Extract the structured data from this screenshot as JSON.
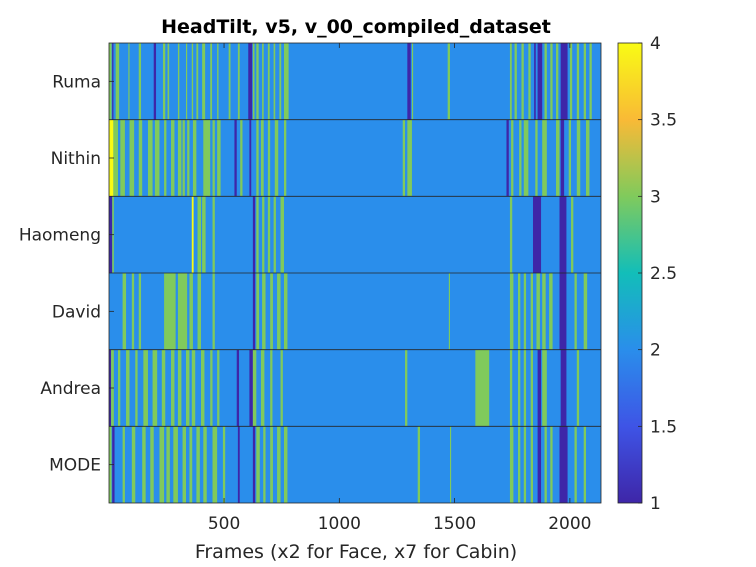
{
  "chart_data": {
    "type": "heatmap",
    "title": "HeadTilt, v5, v_00_compiled_dataset",
    "xlabel": "Frames (x2 for Face, x7 for Cabin)",
    "ylabel": "",
    "xlim": [
      1,
      2135
    ],
    "x_ticks": [
      500,
      1000,
      1500,
      2000
    ],
    "rows": [
      "Ruma",
      "Nithin",
      "Haomeng",
      "David",
      "Andrea",
      "MODE"
    ],
    "colorbar": {
      "colormap": "parula",
      "range": [
        1,
        4
      ],
      "ticks": [
        1,
        1.5,
        2,
        2.5,
        3,
        3.5,
        4
      ],
      "tick_labels": [
        "1",
        "1.5",
        "2",
        "2.5",
        "3",
        "3.5",
        "4"
      ]
    },
    "base_value": 2,
    "segments": [
      {
        "row": "Ruma",
        "spans": [
          [
            1,
            12,
            3
          ],
          [
            15,
            20,
            1
          ],
          [
            30,
            45,
            3
          ],
          [
            85,
            90,
            3
          ],
          [
            130,
            140,
            3
          ],
          [
            195,
            205,
            1
          ],
          [
            235,
            245,
            3
          ],
          [
            255,
            262,
            3
          ],
          [
            300,
            306,
            3
          ],
          [
            335,
            340,
            3
          ],
          [
            360,
            366,
            3
          ],
          [
            380,
            388,
            3
          ],
          [
            405,
            418,
            3
          ],
          [
            440,
            448,
            3
          ],
          [
            470,
            476,
            3
          ],
          [
            520,
            528,
            3
          ],
          [
            560,
            568,
            3
          ],
          [
            605,
            622,
            1
          ],
          [
            625,
            632,
            3
          ],
          [
            640,
            650,
            3
          ],
          [
            665,
            672,
            3
          ],
          [
            690,
            698,
            3
          ],
          [
            715,
            722,
            3
          ],
          [
            740,
            748,
            3
          ],
          [
            760,
            780,
            3
          ],
          [
            1295,
            1310,
            1
          ],
          [
            1315,
            1320,
            3
          ],
          [
            1470,
            1480,
            3
          ],
          [
            1740,
            1748,
            3
          ],
          [
            1760,
            1770,
            3
          ],
          [
            1790,
            1800,
            3
          ],
          [
            1820,
            1830,
            3
          ],
          [
            1845,
            1852,
            1
          ],
          [
            1860,
            1880,
            1
          ],
          [
            1890,
            1900,
            3
          ],
          [
            1915,
            1925,
            3
          ],
          [
            1940,
            1950,
            3
          ],
          [
            1960,
            1990,
            1
          ],
          [
            2000,
            2010,
            3
          ],
          [
            2030,
            2040,
            3
          ],
          [
            2060,
            2070,
            3
          ],
          [
            2085,
            2095,
            3
          ]
        ]
      },
      {
        "row": "Nithin",
        "spans": [
          [
            1,
            20,
            4
          ],
          [
            20,
            40,
            3
          ],
          [
            50,
            70,
            3
          ],
          [
            90,
            110,
            3
          ],
          [
            130,
            145,
            3
          ],
          [
            170,
            190,
            3
          ],
          [
            200,
            220,
            3
          ],
          [
            240,
            250,
            3
          ],
          [
            270,
            285,
            3
          ],
          [
            300,
            315,
            3
          ],
          [
            320,
            330,
            3
          ],
          [
            340,
            350,
            3
          ],
          [
            365,
            380,
            3
          ],
          [
            410,
            440,
            3
          ],
          [
            450,
            460,
            3
          ],
          [
            470,
            485,
            3
          ],
          [
            545,
            555,
            1
          ],
          [
            570,
            580,
            3
          ],
          [
            610,
            618,
            1
          ],
          [
            640,
            650,
            3
          ],
          [
            660,
            672,
            3
          ],
          [
            690,
            700,
            3
          ],
          [
            720,
            735,
            3
          ],
          [
            760,
            770,
            3
          ],
          [
            1275,
            1285,
            3
          ],
          [
            1295,
            1315,
            3
          ],
          [
            1725,
            1735,
            1
          ],
          [
            1745,
            1755,
            3
          ],
          [
            1780,
            1790,
            3
          ],
          [
            1800,
            1820,
            3
          ],
          [
            1850,
            1860,
            3
          ],
          [
            1880,
            1900,
            3
          ],
          [
            1940,
            1955,
            3
          ],
          [
            1960,
            1975,
            1
          ],
          [
            1995,
            2005,
            3
          ],
          [
            2030,
            2045,
            3
          ],
          [
            2070,
            2085,
            3
          ]
        ]
      },
      {
        "row": "Haomeng",
        "spans": [
          [
            1,
            15,
            1
          ],
          [
            15,
            22,
            3
          ],
          [
            360,
            368,
            4
          ],
          [
            385,
            400,
            3
          ],
          [
            405,
            420,
            3
          ],
          [
            450,
            460,
            3
          ],
          [
            625,
            635,
            1
          ],
          [
            640,
            650,
            3
          ],
          [
            665,
            675,
            3
          ],
          [
            690,
            700,
            3
          ],
          [
            715,
            725,
            3
          ],
          [
            745,
            760,
            3
          ],
          [
            1740,
            1750,
            3
          ],
          [
            1840,
            1875,
            1
          ],
          [
            1955,
            1985,
            1
          ],
          [
            2005,
            2015,
            3
          ]
        ]
      },
      {
        "row": "David",
        "spans": [
          [
            60,
            75,
            3
          ],
          [
            100,
            110,
            3
          ],
          [
            130,
            140,
            3
          ],
          [
            240,
            290,
            3
          ],
          [
            300,
            340,
            3
          ],
          [
            350,
            365,
            3
          ],
          [
            385,
            400,
            3
          ],
          [
            450,
            460,
            3
          ],
          [
            625,
            635,
            1
          ],
          [
            640,
            652,
            3
          ],
          [
            665,
            680,
            3
          ],
          [
            700,
            712,
            3
          ],
          [
            730,
            745,
            3
          ],
          [
            760,
            775,
            3
          ],
          [
            1475,
            1480,
            3
          ],
          [
            1740,
            1755,
            3
          ],
          [
            1775,
            1785,
            3
          ],
          [
            1800,
            1810,
            3
          ],
          [
            1830,
            1840,
            3
          ],
          [
            1855,
            1870,
            3
          ],
          [
            1880,
            1895,
            3
          ],
          [
            1910,
            1925,
            3
          ],
          [
            1955,
            1985,
            1
          ],
          [
            2020,
            2030,
            3
          ],
          [
            2060,
            2075,
            3
          ]
        ]
      },
      {
        "row": "Andrea",
        "spans": [
          [
            1,
            10,
            1
          ],
          [
            10,
            22,
            3
          ],
          [
            40,
            50,
            3
          ],
          [
            75,
            90,
            3
          ],
          [
            115,
            125,
            3
          ],
          [
            150,
            170,
            3
          ],
          [
            190,
            210,
            3
          ],
          [
            230,
            245,
            3
          ],
          [
            270,
            285,
            3
          ],
          [
            300,
            315,
            3
          ],
          [
            335,
            350,
            3
          ],
          [
            360,
            375,
            3
          ],
          [
            400,
            415,
            3
          ],
          [
            440,
            450,
            3
          ],
          [
            470,
            480,
            3
          ],
          [
            555,
            565,
            1
          ],
          [
            610,
            625,
            1
          ],
          [
            625,
            640,
            3
          ],
          [
            660,
            675,
            3
          ],
          [
            700,
            710,
            3
          ],
          [
            745,
            755,
            3
          ],
          [
            1285,
            1295,
            3
          ],
          [
            1590,
            1650,
            3
          ],
          [
            1740,
            1750,
            3
          ],
          [
            1775,
            1785,
            3
          ],
          [
            1800,
            1810,
            3
          ],
          [
            1830,
            1840,
            3
          ],
          [
            1860,
            1875,
            1
          ],
          [
            1880,
            1900,
            3
          ],
          [
            1960,
            1985,
            1
          ],
          [
            2030,
            2040,
            3
          ]
        ]
      },
      {
        "row": "MODE",
        "spans": [
          [
            1,
            12,
            3
          ],
          [
            15,
            25,
            1
          ],
          [
            60,
            70,
            3
          ],
          [
            100,
            115,
            3
          ],
          [
            145,
            160,
            3
          ],
          [
            180,
            195,
            3
          ],
          [
            220,
            240,
            3
          ],
          [
            250,
            265,
            3
          ],
          [
            280,
            300,
            3
          ],
          [
            320,
            335,
            3
          ],
          [
            350,
            362,
            3
          ],
          [
            380,
            395,
            3
          ],
          [
            410,
            425,
            3
          ],
          [
            450,
            470,
            3
          ],
          [
            495,
            505,
            3
          ],
          [
            560,
            568,
            1
          ],
          [
            625,
            635,
            1
          ],
          [
            640,
            655,
            3
          ],
          [
            670,
            680,
            3
          ],
          [
            700,
            712,
            3
          ],
          [
            730,
            745,
            3
          ],
          [
            760,
            775,
            3
          ],
          [
            1340,
            1350,
            3
          ],
          [
            1480,
            1485,
            3
          ],
          [
            1740,
            1755,
            3
          ],
          [
            1775,
            1785,
            3
          ],
          [
            1800,
            1810,
            3
          ],
          [
            1830,
            1840,
            3
          ],
          [
            1860,
            1875,
            1
          ],
          [
            1890,
            1900,
            3
          ],
          [
            1915,
            1925,
            3
          ],
          [
            1955,
            1990,
            1
          ],
          [
            2020,
            2030,
            3
          ],
          [
            2060,
            2070,
            3
          ]
        ]
      }
    ]
  }
}
